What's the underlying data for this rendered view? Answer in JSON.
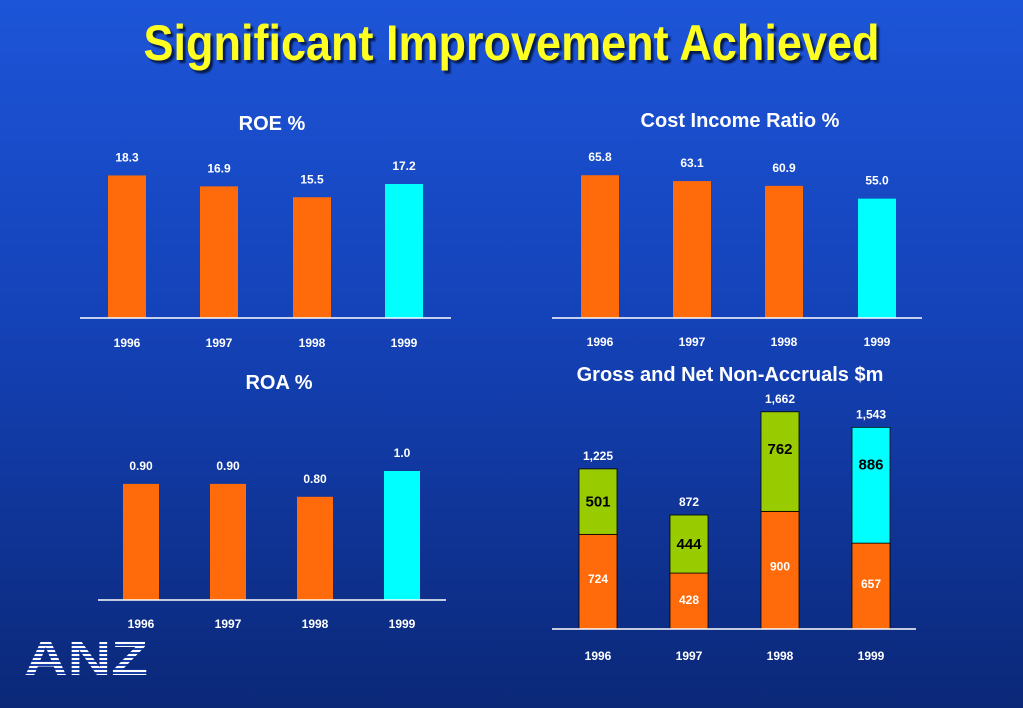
{
  "title": "Significant Improvement Achieved",
  "colors": {
    "orange": "#ff6a0a",
    "cyan": "#00ffff",
    "green": "#99cc00",
    "white": "#ffffff",
    "title_yellow": "#ffff22"
  },
  "logo": {
    "text": "ANZ"
  },
  "chart_data": [
    {
      "type": "bar",
      "title": "ROE %",
      "categories": [
        "1996",
        "1997",
        "1998",
        "1999"
      ],
      "values": [
        18.3,
        16.9,
        15.5,
        17.2
      ],
      "value_labels": [
        "18.3",
        "16.9",
        "15.5",
        "17.2"
      ],
      "bar_colors": [
        "orange",
        "orange",
        "orange",
        "cyan"
      ]
    },
    {
      "type": "bar",
      "title": "Cost Income Ratio %",
      "categories": [
        "1996",
        "1997",
        "1998",
        "1999"
      ],
      "values": [
        65.8,
        63.1,
        60.9,
        55.0
      ],
      "value_labels": [
        "65.8",
        "63.1",
        "60.9",
        "55.0"
      ],
      "bar_colors": [
        "orange",
        "orange",
        "orange",
        "cyan"
      ]
    },
    {
      "type": "bar",
      "title": "ROA %",
      "categories": [
        "1996",
        "1997",
        "1998",
        "1999"
      ],
      "values": [
        0.9,
        0.9,
        0.8,
        1.0
      ],
      "value_labels": [
        "0.90",
        "0.90",
        "0.80",
        "1.0"
      ],
      "bar_colors": [
        "orange",
        "orange",
        "orange",
        "cyan"
      ]
    },
    {
      "type": "bar",
      "stacked": true,
      "title": "Gross and Net Non-Accruals $m",
      "categories": [
        "1996",
        "1997",
        "1998",
        "1999"
      ],
      "totals": [
        "1,225",
        "872",
        "1,662",
        "1,543"
      ],
      "series": [
        {
          "values": [
            724,
            428,
            900,
            657
          ],
          "labels": [
            "724",
            "428",
            "900",
            "657"
          ],
          "color": "orange"
        },
        {
          "values": [
            501,
            444,
            762,
            886
          ],
          "labels": [
            "501",
            "444",
            "762",
            "886"
          ],
          "colors": [
            "green",
            "green",
            "green",
            "cyan"
          ]
        }
      ]
    }
  ]
}
